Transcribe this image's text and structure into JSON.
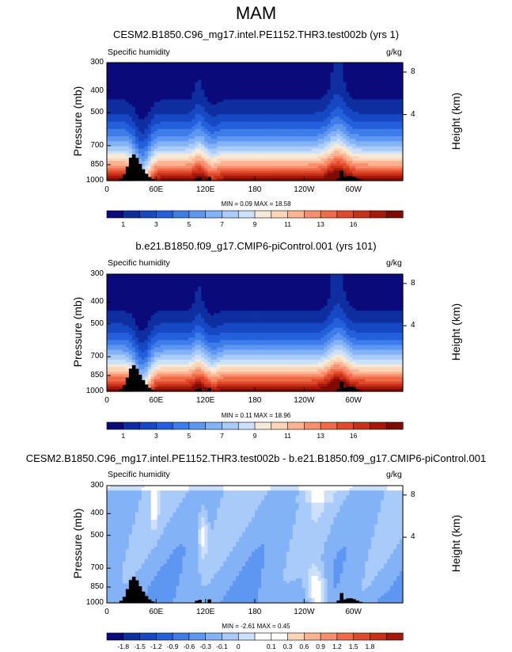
{
  "page_title": "MAM",
  "chart_data": [
    {
      "type": "heatmap",
      "title": "CESM2.B1850.C96_mg17.intel.PE1152.THR3.test002b (yrs 1)",
      "left_label": "Specific humidity",
      "units": "g/kg",
      "ylabel": "Pressure (mb)",
      "ylabel_right": "Height (km)",
      "yticks": [
        "300",
        "400",
        "500",
        "700",
        "850",
        "1000"
      ],
      "yticks_right": [
        "8",
        "4"
      ],
      "xticks": [
        "0",
        "60E",
        "120E",
        "180",
        "120W",
        "60W"
      ],
      "stats": "MIN =  0.09  MAX =  18.58",
      "colorbar_labels": [
        "1",
        "3",
        "5",
        "7",
        "9",
        "11",
        "13",
        "16"
      ],
      "colorbar_colors": [
        "#0a0a7a",
        "#0f2ea0",
        "#1648c4",
        "#2460dc",
        "#3e7ce9",
        "#5e97f1",
        "#83b2f6",
        "#a9cbfa",
        "#cde0fb",
        "#f5ead8",
        "#fcd5b8",
        "#fbb392",
        "#f88f6c",
        "#f06a48",
        "#e04a2c",
        "#c83018",
        "#a8180a",
        "#7e0c05"
      ],
      "vmin": 0,
      "vmax": 18
    },
    {
      "type": "heatmap",
      "title": "b.e21.B1850.f09_g17.CMIP6-piControl.001 (yrs 101)",
      "left_label": "Specific humidity",
      "units": "g/kg",
      "ylabel": "Pressure (mb)",
      "ylabel_right": "Height (km)",
      "yticks": [
        "300",
        "400",
        "500",
        "700",
        "850",
        "1000"
      ],
      "yticks_right": [
        "8",
        "4"
      ],
      "xticks": [
        "0",
        "60E",
        "120E",
        "180",
        "120W",
        "60W"
      ],
      "stats": "MIN =  0.11  MAX =  18.96",
      "colorbar_labels": [
        "1",
        "3",
        "5",
        "7",
        "9",
        "11",
        "13",
        "16"
      ],
      "colorbar_colors": [
        "#0a0a7a",
        "#0f2ea0",
        "#1648c4",
        "#2460dc",
        "#3e7ce9",
        "#5e97f1",
        "#83b2f6",
        "#a9cbfa",
        "#cde0fb",
        "#f5ead8",
        "#fcd5b8",
        "#fbb392",
        "#f88f6c",
        "#f06a48",
        "#e04a2c",
        "#c83018",
        "#a8180a",
        "#7e0c05"
      ],
      "vmin": 0,
      "vmax": 18
    },
    {
      "type": "heatmap",
      "title": "CESM2.B1850.C96_mg17.intel.PE1152.THR3.test002b - b.e21.B1850.f09_g17.CMIP6-piControl.001",
      "left_label": "Specific humidity",
      "units": "g/kg",
      "ylabel": "Pressure (mb)",
      "ylabel_right": "Height (km)",
      "yticks": [
        "300",
        "400",
        "500",
        "700",
        "850",
        "1000"
      ],
      "yticks_right": [
        "8",
        "4"
      ],
      "xticks": [
        "0",
        "60E",
        "120E",
        "180",
        "120W",
        "60W"
      ],
      "stats": "MIN =  -2.61  MAX =  0.45",
      "colorbar_labels": [
        "-1.8",
        "-1.5",
        "-1.2",
        "-0.9",
        "-0.6",
        "-0.3",
        "-0.1",
        "0",
        "0.1",
        "0.3",
        "0.6",
        "0.9",
        "1.2",
        "1.5",
        "1.8"
      ],
      "colorbar_colors": [
        "#0a0a7a",
        "#0f2ea0",
        "#1648c4",
        "#2460dc",
        "#3e7ce9",
        "#5e97f1",
        "#83b2f6",
        "#a9cbfa",
        "#cde0fb",
        "#ffffff",
        "#ffffff",
        "#fcd5b8",
        "#fbb392",
        "#f88f6c",
        "#f06a48",
        "#e04a2c",
        "#c83018",
        "#a8180a"
      ],
      "vmin": -2.7,
      "vmax": 2.7
    }
  ]
}
